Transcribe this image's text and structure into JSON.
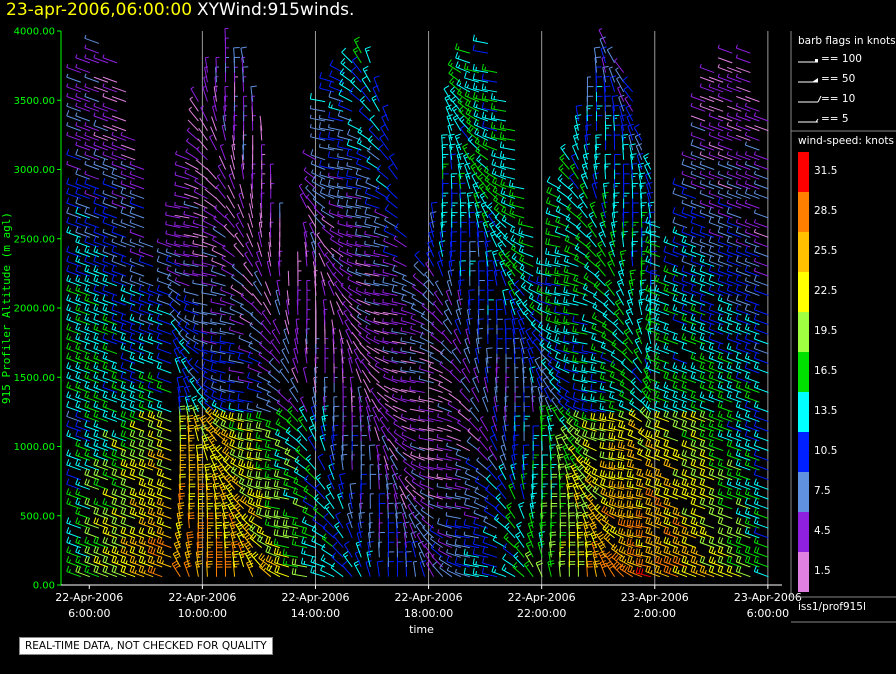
{
  "header": {
    "date_label": "23-apr-2006,06:00:00",
    "title": "XYWind:915winds."
  },
  "chart_data": {
    "type": "wind-barb",
    "ylabel": "915 Profiler Altitude (m agl)",
    "xlabel": "time",
    "ylim": [
      0,
      4000
    ],
    "yticks": [
      "0.00",
      "500.00",
      "1000.00",
      "1500.00",
      "2000.00",
      "2500.00",
      "3000.00",
      "3500.00",
      "4000.00"
    ],
    "xlim_hours": [
      -1,
      24.5
    ],
    "xticks": [
      {
        "hours_from_start": 0,
        "line1": "22-Apr-2006",
        "line2": "6:00:00"
      },
      {
        "hours_from_start": 4,
        "line1": "22-Apr-2006",
        "line2": "10:00:00"
      },
      {
        "hours_from_start": 8,
        "line1": "22-Apr-2006",
        "line2": "14:00:00"
      },
      {
        "hours_from_start": 12,
        "line1": "22-Apr-2006",
        "line2": "18:00:00"
      },
      {
        "hours_from_start": 16,
        "line1": "22-Apr-2006",
        "line2": "22:00:00"
      },
      {
        "hours_from_start": 20,
        "line1": "23-Apr-2006",
        "line2": "2:00:00"
      },
      {
        "hours_from_start": 24,
        "line1": "23-Apr-2006",
        "line2": "6:00:00"
      }
    ],
    "grid_vertical": true,
    "legend_placement": "right",
    "speed_colorbar": {
      "title": "wind-speed: knots",
      "levels": [
        {
          "value": "31.5",
          "color": "#ff0000"
        },
        {
          "value": "28.5",
          "color": "#ff8000"
        },
        {
          "value": "25.5",
          "color": "#ffc000"
        },
        {
          "value": "22.5",
          "color": "#ffff00"
        },
        {
          "value": "19.5",
          "color": "#a0ff40"
        },
        {
          "value": "16.5",
          "color": "#00e000"
        },
        {
          "value": "13.5",
          "color": "#00ffff"
        },
        {
          "value": "10.5",
          "color": "#0020ff"
        },
        {
          "value": "7.5",
          "color": "#6090e0"
        },
        {
          "value": "4.5",
          "color": "#9020e0"
        },
        {
          "value": "1.5",
          "color": "#e080e0"
        }
      ]
    },
    "barb_flags": {
      "title": "barb flags in knots",
      "entries": [
        "== 100",
        "== 50",
        "== 10",
        "== 5"
      ]
    }
  },
  "footer": {
    "station": "iss1/prof915l",
    "quality_note": "REAL-TIME DATA, NOT CHECKED FOR QUALITY"
  }
}
